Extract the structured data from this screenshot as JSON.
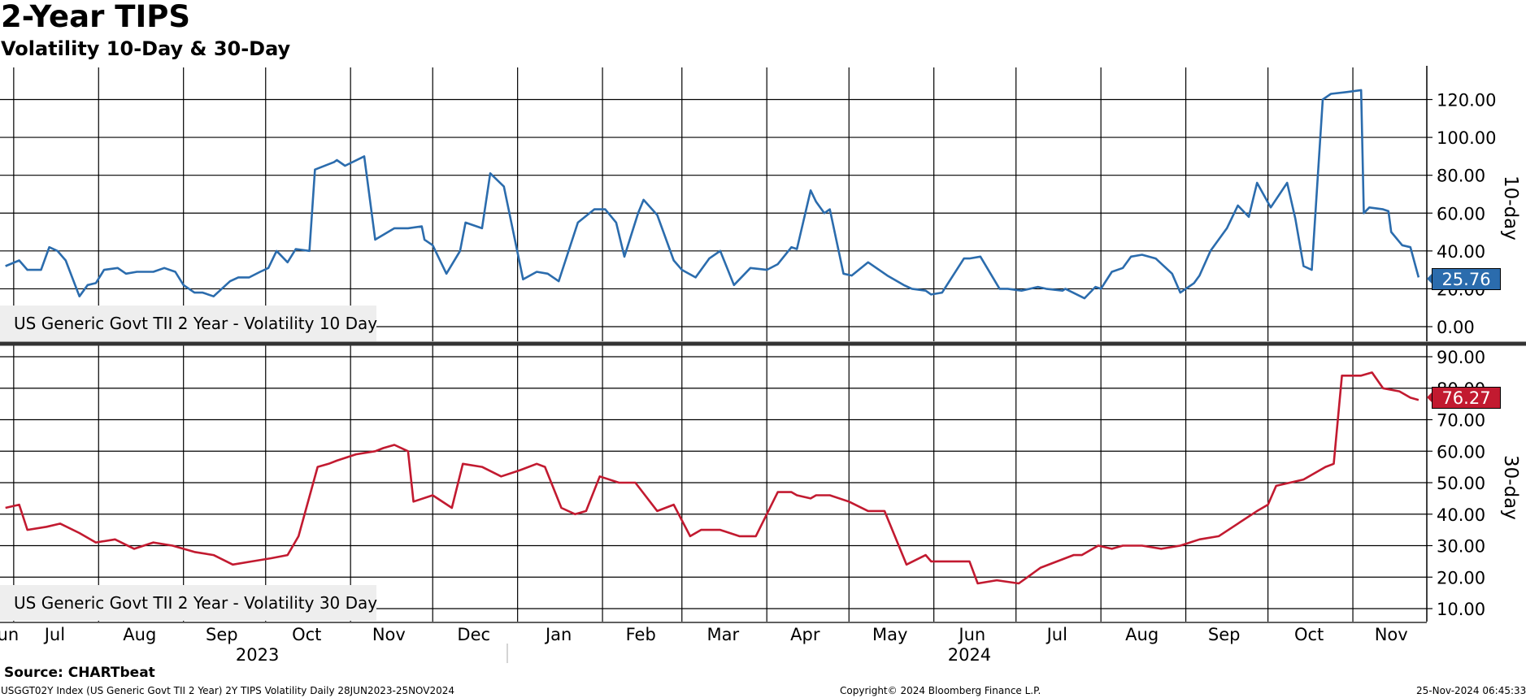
{
  "header": {
    "title": "2-Year TIPS",
    "subtitle": "Volatility 10-Day & 30-Day"
  },
  "colors": {
    "blue": "#2b6cad",
    "red": "#c21a30"
  },
  "top_panel": {
    "axis_title": "10-day",
    "legend": "US Generic Govt TII 2 Year - Volatility 10 Day",
    "last_value": "25.76",
    "y_ticks": [
      "120.00",
      "100.00",
      "80.00",
      "60.00",
      "40.00",
      "20.00",
      "0.00"
    ]
  },
  "bottom_panel": {
    "axis_title": "30-day",
    "legend": "US Generic Govt TII 2 Year - Volatility 30 Day",
    "last_value": "76.27",
    "y_ticks": [
      "90.00",
      "80.00",
      "70.00",
      "60.00",
      "50.00",
      "40.00",
      "30.00",
      "20.00",
      "10.00"
    ]
  },
  "x_axis": {
    "months": [
      "Jun",
      "Jul",
      "Aug",
      "Sep",
      "Oct",
      "Nov",
      "Dec",
      "Jan",
      "Feb",
      "Mar",
      "Apr",
      "May",
      "Jun",
      "Jul",
      "Aug",
      "Sep",
      "Oct",
      "Nov"
    ],
    "years": [
      "2023",
      "2024"
    ]
  },
  "footer": {
    "source": "Source: CHARTbeat",
    "description": "USGGT02Y Index (US Generic Govt TII 2 Year) 2Y TIPS Volatility  Daily 28JUN2023-25NOV2024",
    "copyright": "Copyright© 2024 Bloomberg Finance L.P.",
    "timestamp": "25-Nov-2024 06:45:33"
  },
  "chart_data": [
    {
      "type": "line",
      "series": [
        {
          "name": "US Generic Govt TII 2 Year - Volatility 10 Day",
          "color": "#2b6cad",
          "x": [
            "2023-06-28",
            "2023-07-03",
            "2023-07-06",
            "2023-07-11",
            "2023-07-14",
            "2023-07-17",
            "2023-07-20",
            "2023-07-25",
            "2023-07-28",
            "2023-07-31",
            "2023-08-03",
            "2023-08-08",
            "2023-08-11",
            "2023-08-15",
            "2023-08-21",
            "2023-08-25",
            "2023-08-29",
            "2023-09-01",
            "2023-09-05",
            "2023-09-08",
            "2023-09-12",
            "2023-09-18",
            "2023-09-21",
            "2023-09-25",
            "2023-09-29",
            "2023-10-02",
            "2023-10-05",
            "2023-10-09",
            "2023-10-12",
            "2023-10-17",
            "2023-10-19",
            "2023-10-26",
            "2023-10-27",
            "2023-10-30",
            "2023-11-06",
            "2023-11-10",
            "2023-11-17",
            "2023-11-22",
            "2023-11-27",
            "2023-11-28",
            "2023-12-01",
            "2023-12-06",
            "2023-12-11",
            "2023-12-13",
            "2023-12-19",
            "2023-12-22",
            "2023-12-27",
            "2024-01-03",
            "2024-01-08",
            "2024-01-12",
            "2024-01-16",
            "2024-01-23",
            "2024-01-29",
            "2024-02-02",
            "2024-02-06",
            "2024-02-09",
            "2024-02-14",
            "2024-02-16",
            "2024-02-21",
            "2024-02-27",
            "2024-03-01",
            "2024-03-06",
            "2024-03-11",
            "2024-03-15",
            "2024-03-20",
            "2024-03-26",
            "2024-04-01",
            "2024-04-05",
            "2024-04-10",
            "2024-04-12",
            "2024-04-17",
            "2024-04-19",
            "2024-04-22",
            "2024-04-24",
            "2024-04-29",
            "2024-05-02",
            "2024-05-08",
            "2024-05-15",
            "2024-05-21",
            "2024-05-24",
            "2024-05-29",
            "2024-05-31",
            "2024-06-04",
            "2024-06-12",
            "2024-06-14",
            "2024-06-18",
            "2024-06-25",
            "2024-06-28",
            "2024-07-03",
            "2024-07-09",
            "2024-07-12",
            "2024-07-18",
            "2024-07-19",
            "2024-07-26",
            "2024-07-30",
            "2024-08-01",
            "2024-08-05",
            "2024-08-09",
            "2024-08-12",
            "2024-08-16",
            "2024-08-21",
            "2024-08-27",
            "2024-08-30",
            "2024-09-04",
            "2024-09-06",
            "2024-09-10",
            "2024-09-16",
            "2024-09-20",
            "2024-09-24",
            "2024-09-27",
            "2024-10-02",
            "2024-10-08",
            "2024-10-11",
            "2024-10-14",
            "2024-10-17",
            "2024-10-21",
            "2024-10-23",
            "2024-10-24",
            "2024-10-30",
            "2024-11-04",
            "2024-11-05",
            "2024-11-07",
            "2024-11-12",
            "2024-11-14",
            "2024-11-15",
            "2024-11-19",
            "2024-11-22",
            "2024-11-25"
          ],
          "values": [
            32,
            35,
            30,
            30,
            42,
            40,
            35,
            16,
            22,
            23,
            30,
            31,
            28,
            29,
            29,
            31,
            29,
            22,
            18,
            18,
            16,
            24,
            26,
            26,
            29,
            31,
            40,
            34,
            41,
            40,
            83,
            87,
            88,
            85,
            90,
            46,
            52,
            52,
            53,
            46,
            43,
            28,
            40,
            55,
            52,
            81,
            74,
            25,
            29,
            28,
            24,
            55,
            62,
            62,
            55,
            37,
            60,
            67,
            59,
            35,
            30,
            26,
            36,
            40,
            22,
            31,
            30,
            33,
            42,
            41,
            72,
            66,
            60,
            62,
            28,
            27,
            34,
            27,
            22,
            20,
            19,
            17,
            18,
            36,
            36,
            37,
            20,
            20,
            19,
            21,
            20,
            19,
            20,
            15,
            21,
            20,
            29,
            31,
            37,
            38,
            36,
            28,
            18,
            23,
            27,
            40,
            52,
            64,
            58,
            76,
            63,
            76,
            57,
            32,
            30,
            120,
            122,
            123,
            124,
            125,
            60,
            63,
            62,
            61,
            50,
            43,
            42,
            26
          ]
        }
      ],
      "ylim": [
        -3,
        125
      ],
      "ylabel": "10-day"
    },
    {
      "type": "line",
      "series": [
        {
          "name": "US Generic Govt TII 2 Year - Volatility 30 Day",
          "color": "#c21a30",
          "x": [
            "2023-06-28",
            "2023-07-03",
            "2023-07-06",
            "2023-07-13",
            "2023-07-18",
            "2023-07-25",
            "2023-07-31",
            "2023-08-07",
            "2023-08-14",
            "2023-08-21",
            "2023-08-28",
            "2023-09-05",
            "2023-09-12",
            "2023-09-19",
            "2023-09-26",
            "2023-10-03",
            "2023-10-09",
            "2023-10-13",
            "2023-10-20",
            "2023-10-24",
            "2023-10-27",
            "2023-11-03",
            "2023-11-10",
            "2023-11-13",
            "2023-11-17",
            "2023-11-22",
            "2023-11-24",
            "2023-12-01",
            "2023-12-08",
            "2023-12-12",
            "2023-12-19",
            "2023-12-26",
            "2024-01-02",
            "2024-01-08",
            "2024-01-11",
            "2024-01-17",
            "2024-01-22",
            "2024-01-26",
            "2024-01-31",
            "2024-02-07",
            "2024-02-13",
            "2024-02-21",
            "2024-02-27",
            "2024-03-04",
            "2024-03-08",
            "2024-03-15",
            "2024-03-22",
            "2024-03-28",
            "2024-04-05",
            "2024-04-10",
            "2024-04-12",
            "2024-04-17",
            "2024-04-19",
            "2024-04-24",
            "2024-05-01",
            "2024-05-08",
            "2024-05-14",
            "2024-05-22",
            "2024-05-29",
            "2024-05-31",
            "2024-06-03",
            "2024-06-10",
            "2024-06-14",
            "2024-06-17",
            "2024-06-24",
            "2024-07-02",
            "2024-07-10",
            "2024-07-16",
            "2024-07-22",
            "2024-07-25",
            "2024-07-31",
            "2024-08-05",
            "2024-08-09",
            "2024-08-16",
            "2024-08-23",
            "2024-08-30",
            "2024-09-06",
            "2024-09-13",
            "2024-09-20",
            "2024-09-27",
            "2024-10-01",
            "2024-10-04",
            "2024-10-09",
            "2024-10-14",
            "2024-10-22",
            "2024-10-25",
            "2024-10-28",
            "2024-11-04",
            "2024-11-08",
            "2024-11-12",
            "2024-11-18",
            "2024-11-22",
            "2024-11-25"
          ],
          "values": [
            42,
            43,
            35,
            36,
            37,
            34,
            31,
            32,
            29,
            31,
            30,
            28,
            27,
            24,
            25,
            26,
            27,
            33,
            55,
            56,
            57,
            59,
            60,
            61,
            62,
            60,
            44,
            46,
            42,
            56,
            55,
            52,
            54,
            56,
            55,
            42,
            40,
            41,
            52,
            50,
            50,
            41,
            43,
            33,
            35,
            35,
            33,
            33,
            47,
            47,
            46,
            45,
            46,
            46,
            44,
            41,
            41,
            24,
            27,
            25,
            25,
            25,
            25,
            18,
            19,
            18,
            23,
            25,
            27,
            27,
            30,
            29,
            30,
            30,
            29,
            30,
            32,
            33,
            37,
            41,
            43,
            49,
            50,
            51,
            55,
            56,
            84,
            84,
            85,
            80,
            79,
            77,
            76.27
          ]
        }
      ],
      "ylim": [
        5,
        92
      ],
      "ylabel": "30-day"
    }
  ]
}
